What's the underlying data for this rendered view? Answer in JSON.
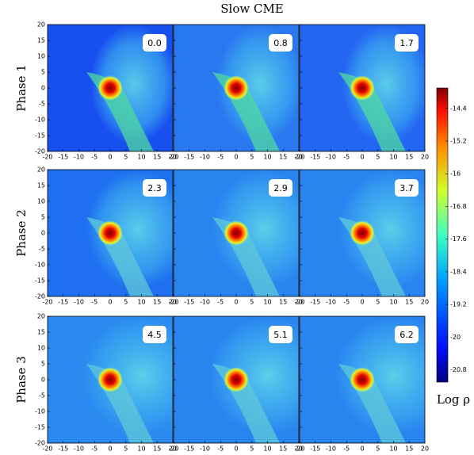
{
  "chart_data": {
    "type": "image-grid",
    "title": "Slow CME",
    "rows": [
      "Phase 1",
      "Phase 2",
      "Phase 3"
    ],
    "panels": [
      [
        "0.0",
        "0.8",
        "1.7"
      ],
      [
        "2.3",
        "2.9",
        "3.7"
      ],
      [
        "4.5",
        "5.1",
        "6.2"
      ]
    ],
    "xlim": [
      -20,
      20
    ],
    "ylim": [
      -20,
      20
    ],
    "xticks": [
      -20,
      -15,
      -10,
      -5,
      0,
      5,
      10,
      15,
      20
    ],
    "yticks": [
      -20,
      -15,
      -10,
      -5,
      0,
      5,
      10,
      15,
      20
    ],
    "colorbar": {
      "label": "Log ρ",
      "lim": [
        -21.1,
        -13.9
      ],
      "ticks": [
        -14.4,
        -15.2,
        -16.0,
        -16.8,
        -17.6,
        -18.4,
        -19.2,
        -20.0,
        -20.8
      ]
    }
  }
}
